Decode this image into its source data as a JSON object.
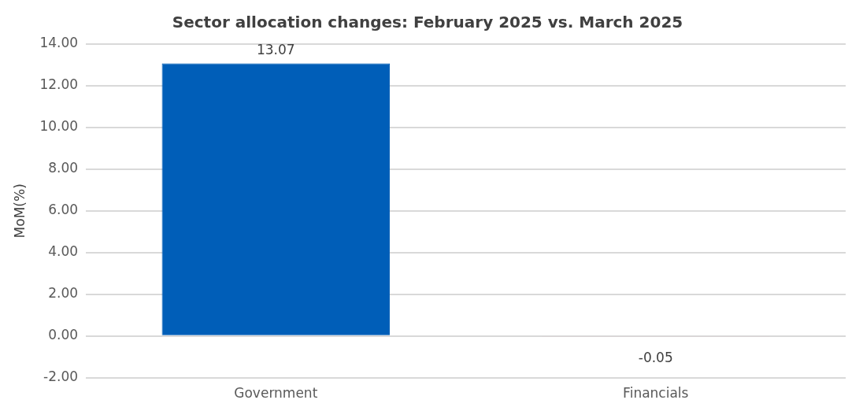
{
  "chart_data": {
    "type": "bar",
    "title": "Sector allocation changes: February 2025 vs. March 2025",
    "ylabel": "MoM(%)",
    "categories": [
      "Government",
      "Financials"
    ],
    "values": [
      13.07,
      -0.05
    ],
    "colors": [
      "#005eb8",
      "#e8a0b4"
    ],
    "ylim": [
      -2,
      14
    ],
    "yticks": [
      {
        "value": -2,
        "label": "-2.00"
      },
      {
        "value": 0,
        "label": "0.00"
      },
      {
        "value": 2,
        "label": "2.00"
      },
      {
        "value": 4,
        "label": "4.00"
      },
      {
        "value": 6,
        "label": "6.00"
      },
      {
        "value": 8,
        "label": "8.00"
      },
      {
        "value": 10,
        "label": "10.00"
      },
      {
        "value": 12,
        "label": "12.00"
      },
      {
        "value": 14,
        "label": "14.00"
      }
    ],
    "grid": "y",
    "legend": false,
    "data_labels": true
  }
}
